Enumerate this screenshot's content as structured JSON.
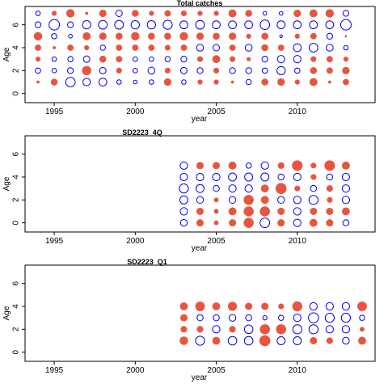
{
  "colors": {
    "positive": "#e8553f",
    "negative": "#0000ee",
    "axis": "#000000"
  },
  "chart_data": [
    {
      "type": "scatter",
      "subtype": "bubble",
      "title": "Total catches",
      "xlabel": "year",
      "ylabel": "Age",
      "xlim": [
        1993.2,
        2014.8
      ],
      "ylim": [
        -0.8,
        7.6
      ],
      "xticks": [
        1995,
        2000,
        2005,
        2010
      ],
      "yticks": [
        0,
        2,
        4,
        6
      ],
      "legend": "none",
      "years": [
        1994,
        1995,
        1996,
        1997,
        1998,
        1999,
        2000,
        2001,
        2002,
        2003,
        2004,
        2005,
        2006,
        2007,
        2008,
        2009,
        2010,
        2011,
        2012,
        2013
      ],
      "ages": [
        1,
        2,
        3,
        4,
        5,
        6,
        7
      ],
      "residuals": {
        "7": [
          -0.3,
          0.3,
          0.9,
          0.1,
          0.7,
          -0.6,
          0.6,
          0.3,
          0.5,
          0.4,
          0.3,
          0.3,
          0.8,
          0.6,
          -0.2,
          -0.2,
          0.7,
          0.8,
          0.9,
          -0.5
        ],
        "6": [
          -0.5,
          -1.6,
          -0.5,
          -1.0,
          -1.1,
          -1.1,
          -1.0,
          -1.0,
          -1.2,
          -0.9,
          -1.1,
          -0.9,
          -0.9,
          -0.9,
          -1.3,
          -0.9,
          -0.9,
          -0.9,
          -0.9,
          -1.6
        ],
        "5": [
          0.9,
          -0.4,
          -0.2,
          0.8,
          0.7,
          0.6,
          0.9,
          0.6,
          0.6,
          0.9,
          0.7,
          0.6,
          0.7,
          0.3,
          0.6,
          -0.1,
          0.3,
          0.5,
          -0.5,
          0.05
        ],
        "4": [
          0.5,
          0.1,
          0.5,
          0.3,
          -0.4,
          0.5,
          0.5,
          0.5,
          0.4,
          0.5,
          -0.7,
          -0.6,
          0.5,
          -0.7,
          0.6,
          0.5,
          -0.9,
          -1.1,
          -0.7,
          -0.3
        ],
        "3": [
          0.3,
          -0.3,
          -0.4,
          -0.6,
          0.6,
          0.5,
          -0.3,
          -0.3,
          -0.4,
          -0.5,
          0.4,
          0.8,
          0.4,
          0.2,
          -0.5,
          -0.8,
          -0.8,
          0.4,
          0.5,
          0.3
        ],
        "2": [
          -0.4,
          -0.3,
          -0.5,
          1.1,
          -0.6,
          0.4,
          -0.3,
          -0.7,
          0.4,
          -0.6,
          -0.5,
          0.4,
          -0.5,
          -0.5,
          -0.4,
          -1.0,
          -0.4,
          0.6,
          0.5,
          0.7
        ],
        "1": [
          0.1,
          0.6,
          -1.3,
          -0.8,
          -0.9,
          -0.3,
          -0.2,
          -0.3,
          0.7,
          -0.3,
          0.3,
          0.3,
          0.1,
          -0.4,
          0.6,
          0.7,
          0.3,
          0.8,
          0.1,
          0.5
        ]
      }
    },
    {
      "type": "scatter",
      "subtype": "bubble",
      "title": "SD2223_4Q",
      "xlabel": "year",
      "ylabel": "Age",
      "xlim": [
        1993.2,
        2014.8
      ],
      "ylim": [
        -0.8,
        7.6
      ],
      "xticks": [
        1995,
        2000,
        2005,
        2010
      ],
      "yticks": [
        0,
        2,
        4,
        6
      ],
      "legend": "none",
      "years": [
        2003,
        2004,
        2005,
        2006,
        2007,
        2008,
        2009,
        2010,
        2011,
        2012,
        2013
      ],
      "ages": [
        0,
        1,
        2,
        3,
        4,
        5
      ],
      "residuals": {
        "5": [
          -0.6,
          0.5,
          0.5,
          0.6,
          -0.3,
          -0.6,
          0.4,
          1.1,
          0.3,
          1.1,
          0.6
        ],
        "4": [
          -0.6,
          -0.6,
          -0.6,
          -0.7,
          -0.7,
          -0.7,
          -0.4,
          -0.6,
          0.3,
          -0.4,
          -0.6
        ],
        "3": [
          -0.9,
          -0.7,
          -0.4,
          -0.6,
          -0.6,
          0.6,
          1.2,
          0.3,
          -0.4,
          0.4,
          -0.6
        ],
        "2": [
          -0.7,
          -0.5,
          0.2,
          -0.5,
          1.0,
          0.6,
          -0.5,
          -0.6,
          -0.9,
          0.3,
          -0.6
        ],
        "1": [
          -0.6,
          0.5,
          0.2,
          0.6,
          1.0,
          1.0,
          0.5,
          -0.6,
          0.5,
          0.5,
          0.6
        ],
        "0": [
          -0.5,
          0.5,
          0.2,
          0.5,
          1.0,
          -1.0,
          0.5,
          -0.6,
          0.6,
          0.5,
          -0.4
        ]
      }
    },
    {
      "type": "scatter",
      "subtype": "bubble",
      "title": "SD2223_Q1",
      "xlabel": "year",
      "ylabel": "Age",
      "xlim": [
        1993.2,
        2014.8
      ],
      "ylim": [
        -0.8,
        7.6
      ],
      "xticks": [
        1995,
        2000,
        2005,
        2010
      ],
      "yticks": [
        0,
        2,
        4,
        6
      ],
      "legend": "none",
      "years": [
        2003,
        2004,
        2005,
        2006,
        2007,
        2008,
        2009,
        2010,
        2011,
        2012,
        2013,
        2014
      ],
      "ages": [
        1,
        2,
        3,
        4
      ],
      "residuals": {
        "4": [
          0.6,
          0.9,
          0.6,
          0.8,
          0.5,
          0.5,
          0.3,
          1.0,
          -0.6,
          -0.6,
          -0.6,
          0.9
        ],
        "3": [
          0.5,
          -0.4,
          -0.4,
          -0.5,
          -0.4,
          -0.2,
          -0.3,
          -0.6,
          -1.1,
          -0.9,
          -0.9,
          -0.3
        ],
        "2": [
          0.4,
          0.4,
          -0.6,
          0.4,
          -0.8,
          1.0,
          1.0,
          -0.9,
          -0.9,
          -0.6,
          -0.6,
          0.2
        ],
        "1": [
          0.7,
          -0.9,
          0.6,
          -0.8,
          -0.8,
          1.2,
          -0.7,
          -0.7,
          0.5,
          0.4,
          -0.5,
          0.6
        ]
      }
    }
  ]
}
